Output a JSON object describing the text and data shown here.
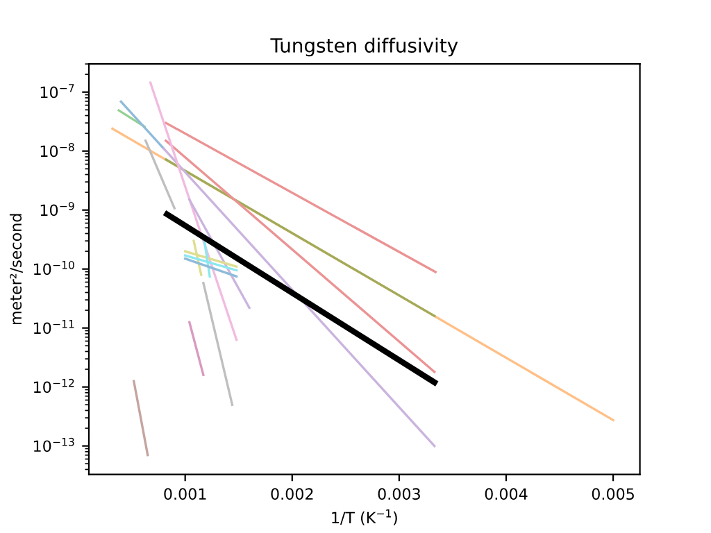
{
  "chart_data": {
    "type": "line",
    "title": "Tungsten diffusivity",
    "xlabel": "1/T (K$^{−1}$)",
    "ylabel": "meter²/second",
    "log": "y",
    "grid": false,
    "marker": "none",
    "line_style": "solid",
    "xlim": [
      0.0001,
      0.00525
    ],
    "ylim": [
      3.3e-14,
      3e-07
    ],
    "xticks": [
      0.001,
      0.002,
      0.003,
      0.004,
      0.005
    ],
    "yticks": [
      {
        "value": 1e-13,
        "label": "10$^{−13}$"
      },
      {
        "value": 1e-12,
        "label": "10$^{−12}$"
      },
      {
        "value": 1e-11,
        "label": "10$^{−11}$"
      },
      {
        "value": 1e-10,
        "label": "10$^{−10}$"
      },
      {
        "value": 1e-09,
        "label": "10$^{−9}$"
      },
      {
        "value": 1e-08,
        "label": "10$^{−8}$"
      },
      {
        "value": 1e-07,
        "label": "10$^{−7}$"
      }
    ],
    "series": [
      {
        "color": "#eb9394",
        "x": [
          0.00082,
          0.00334
        ],
        "values": [
          3e-08,
          8.9e-11
        ]
      },
      {
        "color": "#ffbf86",
        "x": [
          0.00032,
          0.005
        ],
        "values": [
          2.4e-08,
          2.75e-13
        ]
      },
      {
        "color": "#a0ab5a",
        "x": [
          0.00082,
          0.00333
        ],
        "values": [
          7.2e-09,
          1.6e-11
        ]
      },
      {
        "color": "#94d094",
        "x": [
          0.00038,
          0.00062
        ],
        "values": [
          4.9e-08,
          2.6e-08
        ]
      },
      {
        "color": "#8fbbd9",
        "x": [
          0.0004,
          0.0008
        ],
        "values": [
          6.9e-08,
          1.1e-08
        ]
      },
      {
        "color": "#cab4de",
        "x": [
          0.0008,
          0.00333
        ],
        "values": [
          1.1e-08,
          1e-13
        ]
      },
      {
        "color": "#eb9394",
        "x": [
          0.00082,
          0.00333
        ],
        "values": [
          1.5e-08,
          1.8e-12
        ]
      },
      {
        "color": "#f1bbe0",
        "x": [
          0.000675,
          0.00148
        ],
        "values": [
          1.45e-07,
          6.3e-12
        ]
      },
      {
        "color": "#bfbfbf",
        "x": [
          0.00063,
          0.0009
        ],
        "values": [
          1.5e-08,
          1.07e-09
        ]
      },
      {
        "color": "#bfbfbf",
        "x": [
          0.00117,
          0.00144
        ],
        "values": [
          5.8e-11,
          5e-13
        ]
      },
      {
        "color": "#cab4de",
        "x": [
          0.00104,
          0.0016
        ],
        "values": [
          1.5e-09,
          2.2e-11
        ]
      },
      {
        "color": "#dede90",
        "x": [
          0.001,
          0.00148
        ],
        "values": [
          2e-10,
          1.1e-10
        ]
      },
      {
        "color": "#dede90",
        "x": [
          0.00108,
          0.00115
        ],
        "values": [
          3e-10,
          8e-11
        ]
      },
      {
        "color": "#8be8f0",
        "x": [
          0.001,
          0.00148
        ],
        "values": [
          1.7e-10,
          9.5e-11
        ]
      },
      {
        "color": "#8be8f0",
        "x": [
          0.00118,
          0.00123
        ],
        "values": [
          3e-10,
          7.5e-11
        ]
      },
      {
        "color": "#8fbbd9",
        "x": [
          0.001,
          0.00148
        ],
        "values": [
          1.5e-10,
          7.5e-11
        ]
      },
      {
        "color": "#d99ac0",
        "x": [
          0.00104,
          0.00117
        ],
        "values": [
          1.25e-11,
          1.6e-12
        ]
      },
      {
        "color": "#c5a59f",
        "x": [
          0.00052,
          0.00065
        ],
        "values": [
          1.26e-12,
          7e-14
        ]
      },
      {
        "color": "#000000",
        "x": [
          0.00083,
          0.00333
        ],
        "values": [
          8.5e-10,
          1.2e-12
        ]
      }
    ]
  }
}
